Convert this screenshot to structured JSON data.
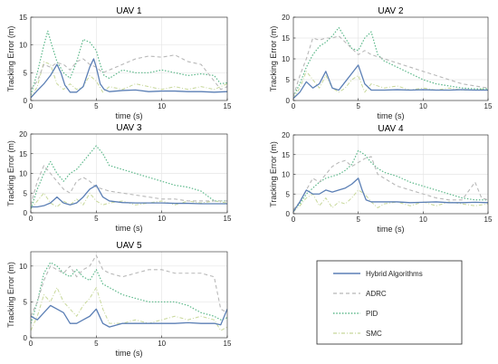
{
  "chart_data": [
    {
      "type": "line",
      "title": "UAV 1",
      "xlabel": "time (s)",
      "ylabel": "Tracking Error (m)",
      "xlim": [
        0,
        15
      ],
      "ylim": [
        0,
        15
      ],
      "xticks": [
        0,
        5,
        10,
        15
      ],
      "yticks": [
        0,
        5,
        10,
        15
      ],
      "grid": true,
      "series": [
        {
          "name": "Hybrid Algorithms",
          "x": [
            0,
            0.5,
            1,
            1.5,
            2,
            2.3,
            2.6,
            3,
            3.5,
            4,
            4.5,
            4.8,
            5,
            5.3,
            5.6,
            6,
            7,
            8,
            9,
            10,
            11,
            12,
            13,
            14,
            15
          ],
          "y": [
            0.5,
            1.8,
            3,
            4.5,
            6.5,
            5,
            2.8,
            1.5,
            1.5,
            2.5,
            6,
            7.5,
            6,
            3,
            2,
            1.6,
            1.8,
            1.9,
            1.6,
            1.7,
            1.7,
            1.6,
            1.6,
            1.5,
            1.6
          ]
        },
        {
          "name": "ADRC",
          "x": [
            0,
            0.5,
            1,
            1.5,
            2,
            2.5,
            3,
            3.5,
            4,
            4.5,
            5,
            5.5,
            6,
            7,
            8,
            9,
            10,
            11,
            12,
            13,
            14,
            14.5,
            15
          ],
          "y": [
            2,
            3.5,
            6.5,
            6,
            6.8,
            6.5,
            5.5,
            7,
            7.5,
            6.5,
            6,
            5,
            5.5,
            6.5,
            7.5,
            8,
            7.8,
            8.2,
            7,
            6.5,
            3.5,
            2,
            2.5
          ]
        },
        {
          "name": "PID",
          "x": [
            0,
            0.5,
            1,
            1.3,
            1.6,
            2,
            2.5,
            3,
            3.5,
            4,
            4.5,
            5,
            5.3,
            5.6,
            6,
            7,
            8,
            9,
            10,
            11,
            12,
            13,
            14,
            14.5,
            15
          ],
          "y": [
            1,
            5,
            10,
            12.5,
            10,
            7,
            5,
            4,
            7,
            11,
            10.5,
            9,
            6.5,
            4.5,
            4,
            5.5,
            5,
            5,
            5.5,
            5,
            4.5,
            4.8,
            4.5,
            3,
            3.2
          ]
        },
        {
          "name": "SMC",
          "x": [
            0,
            0.5,
            1,
            1.5,
            2,
            2.5,
            3,
            3.5,
            4,
            4.5,
            5,
            5.5,
            6,
            7,
            8,
            9,
            10,
            11,
            12,
            13,
            14,
            15
          ],
          "y": [
            0.5,
            2.5,
            7,
            6.5,
            3,
            2,
            3,
            2,
            2.5,
            4.5,
            3.5,
            1.5,
            2.5,
            2,
            3,
            2.5,
            2,
            2.5,
            2,
            2.5,
            2,
            3
          ]
        }
      ]
    },
    {
      "type": "line",
      "title": "UAV 2",
      "xlabel": "time (s)",
      "ylabel": "Tracking Error (m)",
      "xlim": [
        0,
        15
      ],
      "ylim": [
        0,
        20
      ],
      "xticks": [
        0,
        5,
        10,
        15
      ],
      "yticks": [
        0,
        5,
        10,
        15,
        20
      ],
      "grid": true,
      "series": [
        {
          "name": "Hybrid Algorithms",
          "x": [
            0,
            0.5,
            1,
            1.5,
            2,
            2.5,
            3,
            3.5,
            4,
            4.5,
            5,
            5.5,
            6,
            7,
            8,
            9,
            10,
            11,
            12,
            13,
            14,
            15
          ],
          "y": [
            0.5,
            2,
            4.5,
            3,
            4,
            7,
            3,
            2.5,
            4.5,
            6.5,
            8.5,
            4,
            2.5,
            2.5,
            2.6,
            2.5,
            2.6,
            2.5,
            2.5,
            2.6,
            2.5,
            2.5
          ]
        },
        {
          "name": "ADRC",
          "x": [
            0,
            0.5,
            1,
            1.5,
            2,
            2.5,
            3,
            3.5,
            4,
            4.5,
            5,
            5.5,
            6,
            7,
            8,
            9,
            10,
            11,
            12,
            13,
            14,
            15
          ],
          "y": [
            1,
            6,
            10,
            15,
            14.5,
            15,
            15,
            15.5,
            14,
            12.5,
            11,
            12,
            11,
            10,
            9,
            8,
            7,
            6,
            5,
            4,
            3.5,
            3
          ]
        },
        {
          "name": "PID",
          "x": [
            0,
            0.5,
            1,
            1.5,
            2,
            2.5,
            3,
            3.5,
            4,
            4.5,
            5,
            5.5,
            6,
            6.5,
            7,
            8,
            9,
            10,
            11,
            12,
            13,
            14,
            15
          ],
          "y": [
            1,
            4,
            8,
            11,
            13,
            14,
            15.5,
            17.5,
            15,
            12.5,
            12,
            15,
            16.5,
            11,
            9.5,
            8,
            6.5,
            5,
            4,
            3.5,
            3,
            2.8,
            2.8
          ]
        },
        {
          "name": "SMC",
          "x": [
            0,
            0.5,
            1,
            1.5,
            2,
            2.5,
            3,
            3.5,
            4,
            4.5,
            5,
            5.5,
            6,
            7,
            8,
            9,
            10,
            11,
            12,
            13,
            14,
            15
          ],
          "y": [
            0.5,
            3,
            7,
            5,
            3,
            6,
            3,
            2,
            3,
            5,
            6,
            2,
            4,
            3,
            3.5,
            2.5,
            3,
            2.5,
            3,
            2.5,
            2.5,
            3
          ]
        }
      ]
    },
    {
      "type": "line",
      "title": "UAV 3",
      "xlabel": "time (s)",
      "ylabel": "Tracking Error (m)",
      "xlim": [
        0,
        15
      ],
      "ylim": [
        0,
        20
      ],
      "xticks": [
        0,
        5,
        10,
        15
      ],
      "yticks": [
        0,
        5,
        10,
        15,
        20
      ],
      "grid": true,
      "series": [
        {
          "name": "Hybrid Algorithms",
          "x": [
            0,
            0.5,
            1,
            1.5,
            2,
            2.5,
            3,
            3.5,
            4,
            4.5,
            5,
            5.5,
            6,
            7,
            8,
            9,
            10,
            11,
            12,
            13,
            14,
            15
          ],
          "y": [
            1.5,
            1.5,
            1.8,
            2.5,
            4,
            2.5,
            2,
            2.5,
            4,
            6,
            7,
            4,
            3,
            2.6,
            2.5,
            2.5,
            2.5,
            2.4,
            2.4,
            2.3,
            2.3,
            2.3
          ]
        },
        {
          "name": "ADRC",
          "x": [
            0,
            0.5,
            1,
            1.5,
            2,
            2.5,
            3,
            3.5,
            4,
            4.5,
            5,
            5.5,
            6,
            7,
            8,
            9,
            10,
            11,
            12,
            13,
            14,
            15
          ],
          "y": [
            2,
            8,
            12,
            10,
            8,
            6,
            5,
            8,
            9,
            8,
            6.5,
            6,
            5.5,
            5,
            4.5,
            4,
            3.5,
            3.5,
            3,
            3,
            3,
            3
          ]
        },
        {
          "name": "PID",
          "x": [
            0,
            0.5,
            1,
            1.5,
            2,
            2.5,
            3,
            3.5,
            4,
            4.5,
            5,
            5.5,
            6,
            7,
            8,
            9,
            10,
            11,
            12,
            13,
            14,
            15
          ],
          "y": [
            1,
            6,
            10,
            13,
            10,
            8,
            10,
            11,
            13,
            15,
            17,
            15,
            12,
            11,
            10,
            9,
            8,
            7,
            6.5,
            5.5,
            3,
            3
          ]
        },
        {
          "name": "SMC",
          "x": [
            0,
            0.5,
            1,
            1.5,
            2,
            2.5,
            3,
            3.5,
            4,
            4.5,
            5,
            5.5,
            6,
            7,
            8,
            9,
            10,
            11,
            12,
            13,
            14,
            15
          ],
          "y": [
            1,
            3,
            5,
            2.5,
            1.5,
            3,
            2,
            3.5,
            2,
            5,
            3,
            2,
            2.5,
            3,
            2,
            2.5,
            3,
            2,
            3,
            2.5,
            3,
            2.5
          ]
        }
      ]
    },
    {
      "type": "line",
      "title": "UAV 4",
      "xlabel": "time (s)",
      "ylabel": "Tracking Error (m)",
      "xlim": [
        0,
        15
      ],
      "ylim": [
        0,
        20
      ],
      "xticks": [
        0,
        5,
        10,
        15
      ],
      "yticks": [
        0,
        5,
        10,
        15,
        20
      ],
      "grid": true,
      "series": [
        {
          "name": "Hybrid Algorithms",
          "x": [
            0,
            0.5,
            1,
            1.5,
            2,
            2.5,
            3,
            3.5,
            4,
            4.5,
            5,
            5.3,
            5.6,
            6,
            7,
            8,
            9,
            10,
            11,
            12,
            13,
            14,
            15
          ],
          "y": [
            0.5,
            3,
            6,
            5,
            5,
            6,
            5.5,
            6,
            6.5,
            7.5,
            9,
            6,
            3.5,
            3,
            3,
            3,
            2.8,
            2.9,
            3,
            2.8,
            2.8,
            2.9,
            2.8
          ]
        },
        {
          "name": "ADRC",
          "x": [
            0,
            0.5,
            1,
            1.5,
            2,
            2.5,
            3,
            3.5,
            4,
            4.5,
            5,
            5.5,
            6,
            6.5,
            7,
            8,
            9,
            10,
            11,
            12,
            13,
            14,
            14.5,
            15
          ],
          "y": [
            1,
            3,
            6,
            9,
            8,
            10,
            12,
            13,
            13.5,
            12,
            13,
            14,
            14.5,
            10,
            9,
            7,
            6,
            5,
            4,
            3.5,
            3.5,
            8,
            4,
            3.5
          ]
        },
        {
          "name": "PID",
          "x": [
            0,
            0.5,
            1,
            1.5,
            2,
            2.5,
            3,
            3.5,
            4,
            4.5,
            5,
            5.5,
            6,
            6.5,
            7,
            8,
            9,
            10,
            11,
            12,
            13,
            14,
            15
          ],
          "y": [
            1,
            2.5,
            5,
            6.5,
            8,
            9,
            9.5,
            10,
            11,
            12.5,
            16,
            15,
            13,
            11.5,
            10.5,
            9.5,
            8,
            7,
            6,
            5,
            4,
            3.5,
            3.5
          ]
        },
        {
          "name": "SMC",
          "x": [
            0,
            0.5,
            1,
            1.5,
            2,
            2.5,
            3,
            3.5,
            4,
            4.5,
            5,
            5.5,
            6,
            6.5,
            7,
            8,
            9,
            10,
            11,
            12,
            13,
            14,
            15
          ],
          "y": [
            0.5,
            2,
            4,
            5,
            2,
            4,
            1.5,
            3,
            2.5,
            4,
            6,
            5,
            3,
            1.5,
            2.5,
            3,
            2,
            3,
            2,
            3,
            2.5,
            2,
            2.5
          ]
        }
      ]
    },
    {
      "type": "line",
      "title": "UAV 5",
      "xlabel": "time (s)",
      "ylabel": "Tracking Error (m)",
      "xlim": [
        0,
        15
      ],
      "ylim": [
        0,
        12
      ],
      "xticks": [
        0,
        5,
        10,
        15
      ],
      "yticks": [
        0,
        5,
        10
      ],
      "grid": true,
      "series": [
        {
          "name": "Hybrid Algorithms",
          "x": [
            0,
            0.5,
            1,
            1.5,
            2,
            2.5,
            3,
            3.5,
            4,
            4.5,
            5,
            5.5,
            6,
            7,
            8,
            9,
            10,
            11,
            12,
            13,
            14,
            14.5,
            15
          ],
          "y": [
            3,
            2.5,
            3.5,
            4.5,
            4,
            3.5,
            2,
            2,
            2.5,
            3,
            4,
            2,
            1.5,
            2,
            2,
            2,
            2,
            2,
            2.1,
            2,
            2,
            1.8,
            4
          ]
        },
        {
          "name": "ADRC",
          "x": [
            0,
            0.5,
            1,
            1.5,
            2,
            2.5,
            3,
            3.5,
            4,
            4.5,
            5,
            5.5,
            6,
            7,
            8,
            9,
            10,
            11,
            12,
            13,
            14,
            14.5,
            15
          ],
          "y": [
            3,
            5,
            8,
            10,
            9.5,
            9,
            10,
            8.5,
            9.5,
            10,
            11.5,
            9.5,
            9,
            8.5,
            9,
            9.5,
            9.5,
            9,
            9,
            9,
            8.5,
            4,
            3.5
          ]
        },
        {
          "name": "PID",
          "x": [
            0,
            0.5,
            1,
            1.5,
            2,
            2.5,
            3,
            3.5,
            4,
            4.5,
            5,
            5.5,
            6,
            7,
            8,
            9,
            10,
            11,
            12,
            13,
            14,
            14.5,
            15
          ],
          "y": [
            2,
            5,
            9,
            10.5,
            10,
            9,
            8.5,
            9.5,
            8.5,
            8,
            9.5,
            7.5,
            7,
            6,
            5.5,
            5,
            5,
            5,
            4.5,
            3.5,
            3,
            2.5,
            2.8
          ]
        },
        {
          "name": "SMC",
          "x": [
            0,
            0.5,
            1,
            1.5,
            2,
            2.5,
            3,
            3.5,
            4,
            4.5,
            5,
            5.5,
            6,
            7,
            8,
            9,
            10,
            11,
            12,
            13,
            14,
            14.5,
            15
          ],
          "y": [
            1,
            3,
            6,
            5,
            7,
            5,
            4,
            3,
            4.5,
            5.5,
            7,
            4,
            2,
            2,
            2.5,
            2,
            2.5,
            3,
            2.5,
            3,
            2.5,
            1,
            1.5
          ]
        }
      ]
    }
  ],
  "legend": {
    "items": [
      {
        "label": "Hybrid Algorithms",
        "color": "#5b7fb5",
        "dash": "solid"
      },
      {
        "label": "ADRC",
        "color": "#b8b8b8",
        "dash": "dashed"
      },
      {
        "label": "PID",
        "color": "#5cb88a",
        "dash": "dotted"
      },
      {
        "label": "SMC",
        "color": "#c8d89a",
        "dash": "dashdot"
      }
    ]
  },
  "colors": {
    "hybrid": "#5b7fb5",
    "adrc": "#b8b8b8",
    "pid": "#5cb88a",
    "smc": "#c8d89a",
    "grid": "#e6e6e6",
    "axis": "#262626"
  }
}
